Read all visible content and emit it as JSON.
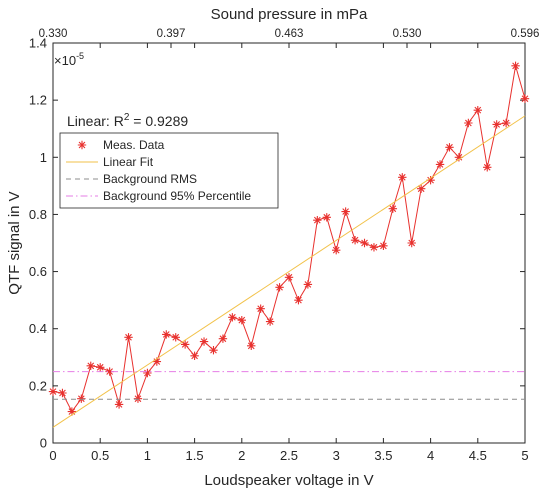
{
  "chart_data": {
    "type": "scatter",
    "xlabel": "Loudspeaker voltage in V",
    "ylabel": "QTF signal in V",
    "top_axis_label": "Sound pressure in mPa",
    "top_ticks": [
      "0.330",
      "0.397",
      "0.463",
      "0.530",
      "0.596"
    ],
    "y_exponent_label": "×10",
    "y_exponent_power": "-5",
    "xlim": [
      0,
      5
    ],
    "ylim": [
      0,
      1.4
    ],
    "x_ticks": [
      "0",
      "0.5",
      "1",
      "1.5",
      "2",
      "2.5",
      "3",
      "3.5",
      "4",
      "4.5",
      "5"
    ],
    "y_ticks": [
      "0",
      "0.2",
      "0.4",
      "0.6",
      "0.8",
      "1",
      "1.2",
      "1.4"
    ],
    "grid": false,
    "legend_position": "top-left",
    "annotation": {
      "text": "Linear: R",
      "sup": "2",
      "rest": " = 0.9289"
    },
    "series": [
      {
        "name": "Meas. Data",
        "style": "line-with-star-markers",
        "color": "#e8312e",
        "x": [
          0,
          0.1,
          0.2,
          0.3,
          0.4,
          0.5,
          0.6,
          0.7,
          0.8,
          0.9,
          1.0,
          1.1,
          1.2,
          1.3,
          1.4,
          1.5,
          1.6,
          1.7,
          1.8,
          1.9,
          2.0,
          2.1,
          2.2,
          2.3,
          2.4,
          2.5,
          2.6,
          2.7,
          2.8,
          2.9,
          3.0,
          3.1,
          3.2,
          3.3,
          3.4,
          3.5,
          3.6,
          3.7,
          3.8,
          3.9,
          4.0,
          4.1,
          4.2,
          4.3,
          4.4,
          4.5,
          4.6,
          4.7,
          4.8,
          4.9,
          5.0
        ],
        "y": [
          0.18,
          0.175,
          0.11,
          0.155,
          0.27,
          0.265,
          0.25,
          0.135,
          0.37,
          0.155,
          0.245,
          0.285,
          0.38,
          0.37,
          0.345,
          0.305,
          0.355,
          0.325,
          0.365,
          0.44,
          0.43,
          0.34,
          0.47,
          0.425,
          0.545,
          0.58,
          0.5,
          0.555,
          0.78,
          0.79,
          0.675,
          0.81,
          0.71,
          0.7,
          0.685,
          0.69,
          0.82,
          0.93,
          0.7,
          0.89,
          0.92,
          0.975,
          1.035,
          1.0,
          1.12,
          1.165,
          0.965,
          1.115,
          1.12,
          1.32,
          1.205
        ]
      },
      {
        "name": "Linear Fit",
        "style": "line",
        "color": "#f2c24a",
        "x": [
          0,
          5
        ],
        "y": [
          0.055,
          1.145
        ]
      },
      {
        "name": "Background RMS",
        "style": "dashed",
        "color": "#8c8c8c",
        "x": [
          0,
          5
        ],
        "y": [
          0.153,
          0.153
        ]
      },
      {
        "name": "Background 95% Percentile",
        "style": "dash-dot",
        "color": "#e67ee6",
        "x": [
          0,
          5
        ],
        "y": [
          0.25,
          0.25
        ]
      }
    ]
  }
}
